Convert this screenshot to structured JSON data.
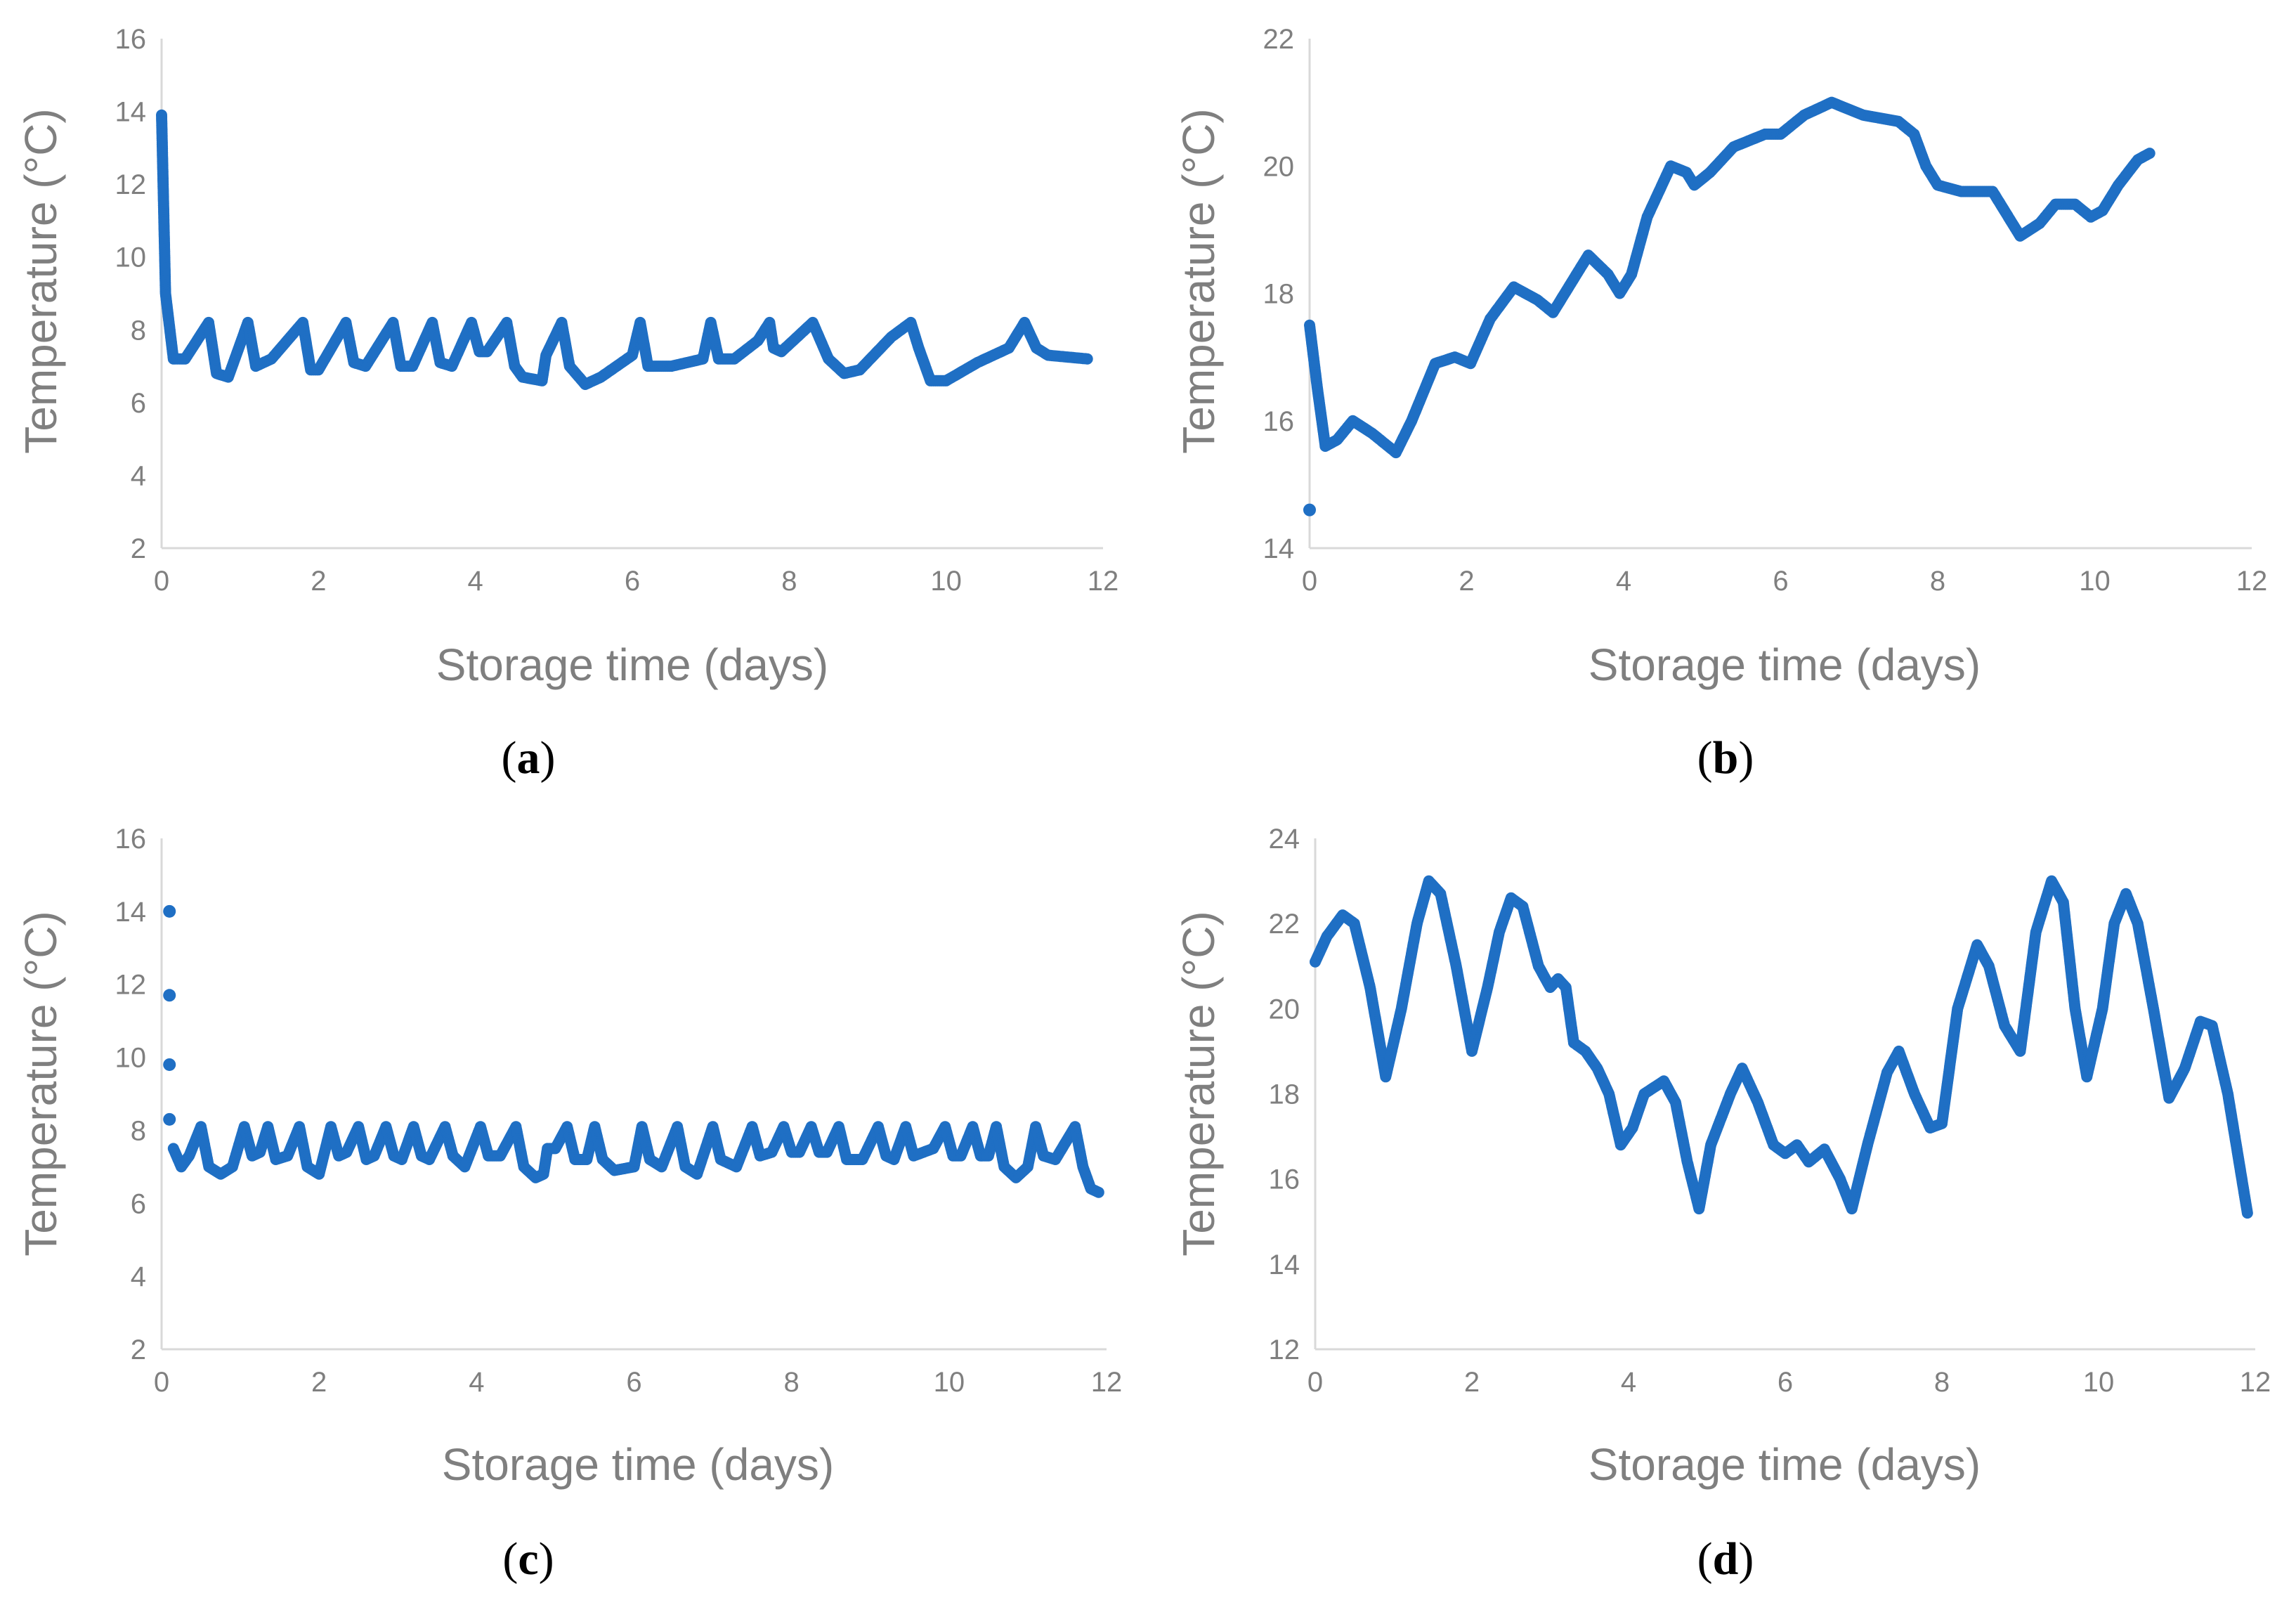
{
  "colors": {
    "series": "#1f6fc4",
    "axis_text": "#7f7f7f",
    "axis_line": "#d9d9d9"
  },
  "chart_data": [
    {
      "panel_id": "a",
      "panel_open": "(",
      "panel_letter": "a",
      "panel_close": ")",
      "type": "scatter",
      "xlabel": "Storage time (days)",
      "ylabel": "Temperature  (°C)",
      "xlim": [
        0,
        12
      ],
      "ylim": [
        2,
        16
      ],
      "xticks": [
        0,
        2,
        4,
        6,
        8,
        10,
        12
      ],
      "yticks": [
        2,
        4,
        6,
        8,
        10,
        12,
        14,
        16
      ],
      "keypoints": [
        [
          0,
          13.9
        ],
        [
          0.05,
          9.0
        ],
        [
          0.15,
          7.2
        ],
        [
          0.3,
          7.2
        ],
        [
          0.6,
          8.2
        ],
        [
          0.7,
          6.8
        ],
        [
          0.85,
          6.7
        ],
        [
          1.1,
          8.2
        ],
        [
          1.2,
          7.0
        ],
        [
          1.4,
          7.2
        ],
        [
          1.8,
          8.2
        ],
        [
          1.9,
          6.9
        ],
        [
          2.0,
          6.9
        ],
        [
          2.35,
          8.2
        ],
        [
          2.45,
          7.1
        ],
        [
          2.6,
          7.0
        ],
        [
          2.95,
          8.2
        ],
        [
          3.05,
          7.0
        ],
        [
          3.2,
          7.0
        ],
        [
          3.45,
          8.2
        ],
        [
          3.55,
          7.1
        ],
        [
          3.7,
          7.0
        ],
        [
          3.95,
          8.2
        ],
        [
          4.05,
          7.4
        ],
        [
          4.15,
          7.4
        ],
        [
          4.4,
          8.2
        ],
        [
          4.5,
          7.0
        ],
        [
          4.6,
          6.7
        ],
        [
          4.85,
          6.6
        ],
        [
          4.9,
          7.3
        ],
        [
          5.1,
          8.2
        ],
        [
          5.2,
          7.0
        ],
        [
          5.4,
          6.5
        ],
        [
          5.6,
          6.7
        ],
        [
          6.0,
          7.3
        ],
        [
          6.1,
          8.2
        ],
        [
          6.2,
          7.0
        ],
        [
          6.5,
          7.0
        ],
        [
          6.9,
          7.2
        ],
        [
          7.0,
          8.2
        ],
        [
          7.1,
          7.2
        ],
        [
          7.3,
          7.2
        ],
        [
          7.6,
          7.7
        ],
        [
          7.75,
          8.2
        ],
        [
          7.8,
          7.5
        ],
        [
          7.9,
          7.4
        ],
        [
          8.3,
          8.2
        ],
        [
          8.5,
          7.2
        ],
        [
          8.7,
          6.8
        ],
        [
          8.9,
          6.9
        ],
        [
          9.3,
          7.8
        ],
        [
          9.55,
          8.2
        ],
        [
          9.65,
          7.5
        ],
        [
          9.8,
          6.6
        ],
        [
          10.0,
          6.6
        ],
        [
          10.4,
          7.1
        ],
        [
          10.8,
          7.5
        ],
        [
          11.0,
          8.2
        ],
        [
          11.15,
          7.5
        ],
        [
          11.3,
          7.3
        ],
        [
          11.8,
          7.2
        ]
      ],
      "isolated_points": []
    },
    {
      "panel_id": "b",
      "panel_open": "(",
      "panel_letter": "b",
      "panel_close": ")",
      "type": "scatter",
      "xlabel": "Storage time (days)",
      "ylabel": "Temperature  (°C)",
      "xlim": [
        0,
        12
      ],
      "ylim": [
        14,
        22
      ],
      "xticks": [
        0,
        2,
        4,
        6,
        8,
        10,
        12
      ],
      "yticks": [
        14,
        16,
        18,
        20,
        22
      ],
      "keypoints": [
        [
          0,
          17.5
        ],
        [
          0.1,
          16.5
        ],
        [
          0.2,
          15.6
        ],
        [
          0.35,
          15.7
        ],
        [
          0.55,
          16.0
        ],
        [
          0.8,
          15.8
        ],
        [
          1.1,
          15.5
        ],
        [
          1.3,
          16.0
        ],
        [
          1.6,
          16.9
        ],
        [
          1.85,
          17.0
        ],
        [
          2.05,
          16.9
        ],
        [
          2.3,
          17.6
        ],
        [
          2.6,
          18.1
        ],
        [
          2.9,
          17.9
        ],
        [
          3.1,
          17.7
        ],
        [
          3.3,
          18.1
        ],
        [
          3.55,
          18.6
        ],
        [
          3.8,
          18.3
        ],
        [
          3.95,
          18.0
        ],
        [
          4.1,
          18.3
        ],
        [
          4.3,
          19.2
        ],
        [
          4.6,
          20.0
        ],
        [
          4.8,
          19.9
        ],
        [
          4.9,
          19.7
        ],
        [
          5.1,
          19.9
        ],
        [
          5.4,
          20.3
        ],
        [
          5.8,
          20.5
        ],
        [
          6.0,
          20.5
        ],
        [
          6.3,
          20.8
        ],
        [
          6.65,
          21.0
        ],
        [
          6.85,
          20.9
        ],
        [
          7.05,
          20.8
        ],
        [
          7.5,
          20.7
        ],
        [
          7.7,
          20.5
        ],
        [
          7.85,
          20.0
        ],
        [
          8.0,
          19.7
        ],
        [
          8.3,
          19.6
        ],
        [
          8.7,
          19.6
        ],
        [
          8.85,
          19.3
        ],
        [
          9.05,
          18.9
        ],
        [
          9.3,
          19.1
        ],
        [
          9.5,
          19.4
        ],
        [
          9.75,
          19.4
        ],
        [
          9.95,
          19.2
        ],
        [
          10.1,
          19.3
        ],
        [
          10.3,
          19.7
        ],
        [
          10.55,
          20.1
        ],
        [
          10.7,
          20.2
        ]
      ],
      "isolated_points": [
        [
          0,
          14.6
        ]
      ]
    },
    {
      "panel_id": "c",
      "panel_open": "(",
      "panel_letter": "c",
      "panel_close": ")",
      "type": "scatter",
      "xlabel": "Storage time (days)",
      "ylabel": "Temperature  (°C)",
      "xlim": [
        0,
        12
      ],
      "ylim": [
        2,
        16
      ],
      "xticks": [
        0,
        2,
        4,
        6,
        8,
        10,
        12
      ],
      "yticks": [
        2,
        4,
        6,
        8,
        10,
        12,
        14,
        16
      ],
      "keypoints": [
        [
          0.15,
          7.5
        ],
        [
          0.25,
          7.0
        ],
        [
          0.35,
          7.3
        ],
        [
          0.5,
          8.1
        ],
        [
          0.6,
          7.0
        ],
        [
          0.75,
          6.8
        ],
        [
          0.9,
          7.0
        ],
        [
          1.05,
          8.1
        ],
        [
          1.15,
          7.3
        ],
        [
          1.25,
          7.4
        ],
        [
          1.35,
          8.1
        ],
        [
          1.45,
          7.2
        ],
        [
          1.6,
          7.3
        ],
        [
          1.75,
          8.1
        ],
        [
          1.85,
          7.0
        ],
        [
          2.0,
          6.8
        ],
        [
          2.15,
          8.1
        ],
        [
          2.25,
          7.3
        ],
        [
          2.35,
          7.4
        ],
        [
          2.5,
          8.1
        ],
        [
          2.6,
          7.2
        ],
        [
          2.7,
          7.3
        ],
        [
          2.85,
          8.1
        ],
        [
          2.95,
          7.3
        ],
        [
          3.05,
          7.2
        ],
        [
          3.2,
          8.1
        ],
        [
          3.3,
          7.3
        ],
        [
          3.4,
          7.2
        ],
        [
          3.6,
          8.1
        ],
        [
          3.7,
          7.3
        ],
        [
          3.85,
          7.0
        ],
        [
          4.05,
          8.1
        ],
        [
          4.15,
          7.3
        ],
        [
          4.3,
          7.3
        ],
        [
          4.5,
          8.1
        ],
        [
          4.6,
          7.0
        ],
        [
          4.75,
          6.7
        ],
        [
          4.85,
          6.8
        ],
        [
          4.9,
          7.5
        ],
        [
          5.0,
          7.5
        ],
        [
          5.15,
          8.1
        ],
        [
          5.25,
          7.2
        ],
        [
          5.4,
          7.2
        ],
        [
          5.5,
          8.1
        ],
        [
          5.6,
          7.2
        ],
        [
          5.75,
          6.9
        ],
        [
          6.0,
          7.0
        ],
        [
          6.1,
          8.1
        ],
        [
          6.2,
          7.2
        ],
        [
          6.35,
          7.0
        ],
        [
          6.55,
          8.1
        ],
        [
          6.65,
          7.0
        ],
        [
          6.8,
          6.8
        ],
        [
          7.0,
          8.1
        ],
        [
          7.1,
          7.2
        ],
        [
          7.3,
          7.0
        ],
        [
          7.5,
          8.1
        ],
        [
          7.6,
          7.3
        ],
        [
          7.75,
          7.4
        ],
        [
          7.9,
          8.1
        ],
        [
          8.0,
          7.4
        ],
        [
          8.1,
          7.4
        ],
        [
          8.25,
          8.1
        ],
        [
          8.35,
          7.4
        ],
        [
          8.45,
          7.4
        ],
        [
          8.6,
          8.1
        ],
        [
          8.7,
          7.2
        ],
        [
          8.9,
          7.2
        ],
        [
          9.1,
          8.1
        ],
        [
          9.2,
          7.3
        ],
        [
          9.3,
          7.2
        ],
        [
          9.45,
          8.1
        ],
        [
          9.55,
          7.3
        ],
        [
          9.8,
          7.5
        ],
        [
          9.95,
          8.1
        ],
        [
          10.05,
          7.3
        ],
        [
          10.15,
          7.3
        ],
        [
          10.3,
          8.1
        ],
        [
          10.4,
          7.3
        ],
        [
          10.5,
          7.3
        ],
        [
          10.6,
          8.1
        ],
        [
          10.7,
          7.0
        ],
        [
          10.85,
          6.7
        ],
        [
          11.0,
          7.0
        ],
        [
          11.1,
          8.1
        ],
        [
          11.2,
          7.3
        ],
        [
          11.35,
          7.2
        ],
        [
          11.6,
          8.1
        ],
        [
          11.7,
          7.0
        ],
        [
          11.8,
          6.4
        ],
        [
          11.9,
          6.3
        ]
      ],
      "isolated_points": [
        [
          0.1,
          14.0
        ],
        [
          0.1,
          11.7
        ],
        [
          0.1,
          9.8
        ],
        [
          0.1,
          8.3
        ]
      ]
    },
    {
      "panel_id": "d",
      "panel_open": "(",
      "panel_letter": "d",
      "panel_close": ")",
      "type": "scatter",
      "xlabel": "Storage time (days)",
      "ylabel": "Temperature  (°C)",
      "xlim": [
        0,
        12
      ],
      "ylim": [
        12,
        24
      ],
      "xticks": [
        0,
        2,
        4,
        6,
        8,
        10,
        12
      ],
      "yticks": [
        12,
        14,
        16,
        18,
        20,
        22,
        24
      ],
      "keypoints": [
        [
          0,
          21.1
        ],
        [
          0.15,
          21.7
        ],
        [
          0.35,
          22.2
        ],
        [
          0.5,
          22.0
        ],
        [
          0.7,
          20.5
        ],
        [
          0.9,
          18.4
        ],
        [
          1.1,
          20.0
        ],
        [
          1.3,
          22.0
        ],
        [
          1.45,
          23.0
        ],
        [
          1.6,
          22.7
        ],
        [
          1.8,
          21.0
        ],
        [
          2.0,
          19.0
        ],
        [
          2.2,
          20.5
        ],
        [
          2.35,
          21.8
        ],
        [
          2.5,
          22.6
        ],
        [
          2.65,
          22.4
        ],
        [
          2.85,
          21.0
        ],
        [
          3.0,
          20.5
        ],
        [
          3.1,
          20.7
        ],
        [
          3.2,
          20.5
        ],
        [
          3.3,
          19.2
        ],
        [
          3.45,
          19.0
        ],
        [
          3.6,
          18.6
        ],
        [
          3.75,
          18.0
        ],
        [
          3.9,
          16.8
        ],
        [
          4.05,
          17.2
        ],
        [
          4.2,
          18.0
        ],
        [
          4.45,
          18.3
        ],
        [
          4.6,
          17.8
        ],
        [
          4.75,
          16.4
        ],
        [
          4.9,
          15.3
        ],
        [
          5.05,
          16.8
        ],
        [
          5.3,
          18.0
        ],
        [
          5.45,
          18.6
        ],
        [
          5.65,
          17.8
        ],
        [
          5.85,
          16.8
        ],
        [
          6.0,
          16.6
        ],
        [
          6.15,
          16.8
        ],
        [
          6.3,
          16.4
        ],
        [
          6.5,
          16.7
        ],
        [
          6.7,
          16.0
        ],
        [
          6.85,
          15.3
        ],
        [
          7.05,
          16.8
        ],
        [
          7.3,
          18.5
        ],
        [
          7.45,
          19.0
        ],
        [
          7.65,
          18.0
        ],
        [
          7.85,
          17.2
        ],
        [
          8.0,
          17.3
        ],
        [
          8.2,
          20.0
        ],
        [
          8.45,
          21.5
        ],
        [
          8.6,
          21.0
        ],
        [
          8.8,
          19.6
        ],
        [
          9.0,
          19.0
        ],
        [
          9.2,
          21.8
        ],
        [
          9.4,
          23.0
        ],
        [
          9.55,
          22.5
        ],
        [
          9.7,
          20.0
        ],
        [
          9.85,
          18.4
        ],
        [
          10.05,
          20.0
        ],
        [
          10.2,
          22.0
        ],
        [
          10.35,
          22.7
        ],
        [
          10.5,
          22.0
        ],
        [
          10.7,
          20.0
        ],
        [
          10.9,
          17.9
        ],
        [
          11.1,
          18.6
        ],
        [
          11.3,
          19.7
        ],
        [
          11.45,
          19.6
        ],
        [
          11.65,
          18.0
        ],
        [
          11.9,
          15.2
        ]
      ],
      "isolated_points": []
    }
  ]
}
